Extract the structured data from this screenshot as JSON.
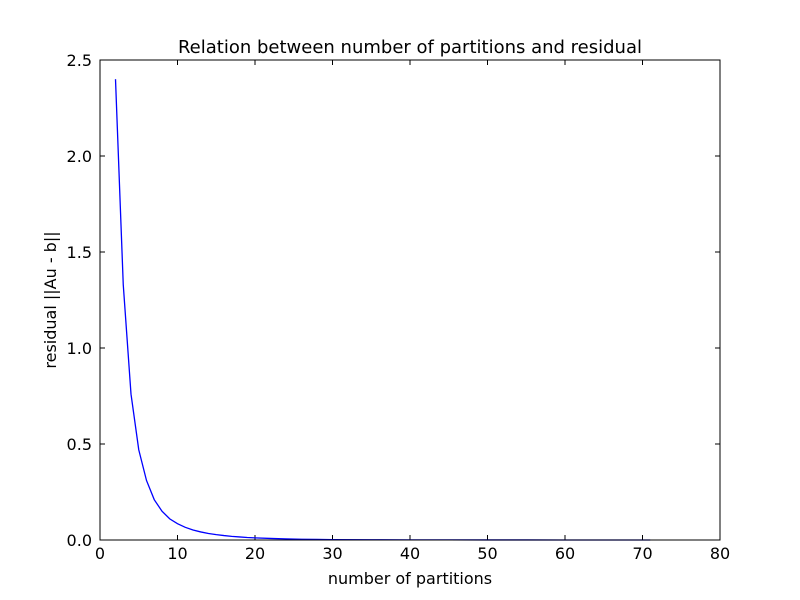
{
  "chart_data": {
    "type": "line",
    "title": "Relation between number of partitions and residual",
    "xlabel": "number of partitions",
    "ylabel": "residual ||Au - b||",
    "xlim": [
      0,
      80
    ],
    "ylim": [
      0,
      2.5
    ],
    "xticks": [
      "0",
      "10",
      "20",
      "30",
      "40",
      "50",
      "60",
      "70",
      "80"
    ],
    "yticks": [
      "0.0",
      "0.5",
      "1.0",
      "1.5",
      "2.0",
      "2.5"
    ],
    "xtick_values": [
      0,
      10,
      20,
      30,
      40,
      50,
      60,
      70,
      80
    ],
    "ytick_values": [
      0,
      0.5,
      1.0,
      1.5,
      2.0,
      2.5
    ],
    "grid": false,
    "series": [
      {
        "color": "#0000ff",
        "x": [
          2,
          3,
          4,
          5,
          6,
          7,
          8,
          9,
          10,
          11,
          12,
          13,
          14,
          15,
          16,
          17,
          18,
          19,
          20,
          22,
          24,
          26,
          28,
          30,
          35,
          40,
          45,
          50,
          55,
          60,
          65,
          70,
          71
        ],
        "y": [
          2.4,
          1.33,
          0.76,
          0.47,
          0.31,
          0.21,
          0.15,
          0.11,
          0.085,
          0.066,
          0.052,
          0.042,
          0.034,
          0.028,
          0.023,
          0.019,
          0.016,
          0.013,
          0.011,
          0.008,
          0.006,
          0.004,
          0.003,
          0.002,
          0.001,
          0.0007,
          0.0005,
          0.0003,
          0.0002,
          0.0001,
          0.0001,
          0.0001,
          0.0001
        ]
      }
    ]
  }
}
